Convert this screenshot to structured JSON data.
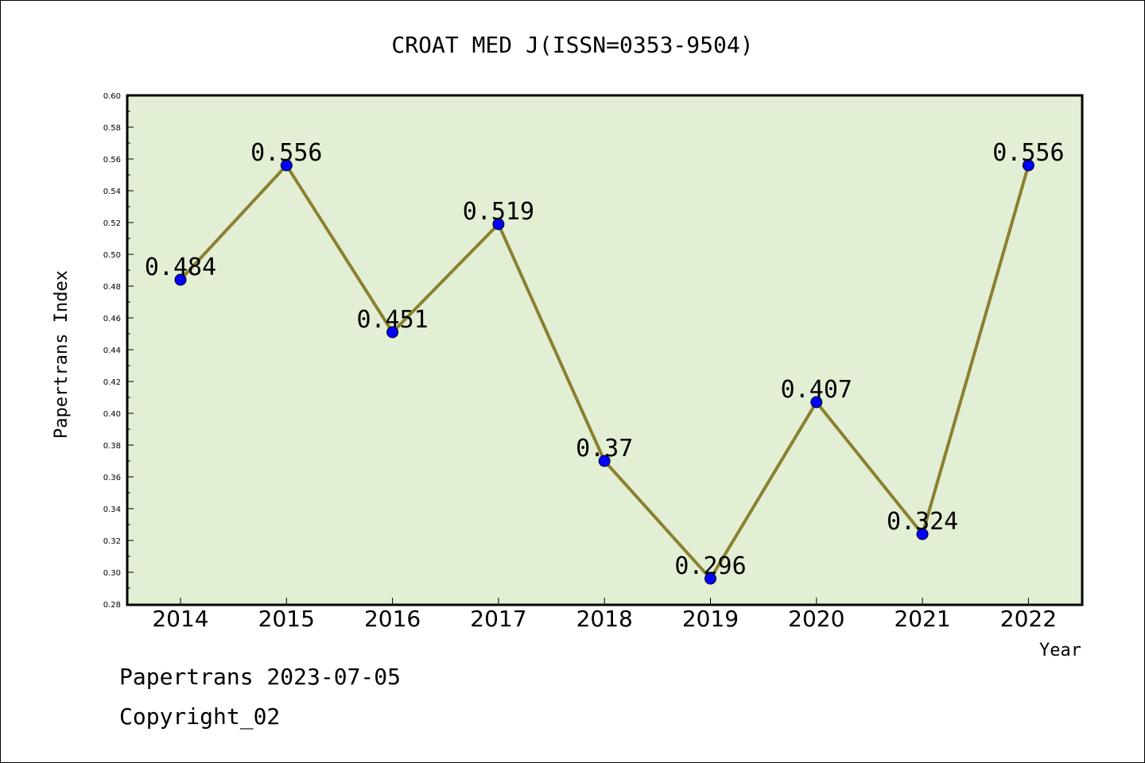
{
  "chart_data": {
    "type": "line",
    "title": "CROAT MED J(ISSN=0353-9504)",
    "xlabel": "Year",
    "ylabel": "Papertrans Index",
    "categories": [
      "2014",
      "2015",
      "2016",
      "2017",
      "2018",
      "2019",
      "2020",
      "2021",
      "2022"
    ],
    "values": [
      0.484,
      0.556,
      0.451,
      0.519,
      0.37,
      0.296,
      0.407,
      0.324,
      0.556
    ],
    "data_labels": [
      "0.484",
      "0.556",
      "0.451",
      "0.519",
      "0.37",
      "0.296",
      "0.407",
      "0.324",
      "0.556"
    ],
    "ylim": [
      0.28,
      0.6
    ],
    "yticks": [
      "0.28",
      "0.30",
      "0.32",
      "0.34",
      "0.36",
      "0.38",
      "0.40",
      "0.42",
      "0.44",
      "0.46",
      "0.48",
      "0.50",
      "0.52",
      "0.54",
      "0.56",
      "0.58",
      "0.60"
    ],
    "grid": false,
    "colors": {
      "plot_background": "#e2efd5",
      "line": "#8b8030",
      "marker": "#0000ff"
    }
  },
  "footer": {
    "line1": "Papertrans 2023-07-05",
    "line2": "Copyright_02"
  }
}
